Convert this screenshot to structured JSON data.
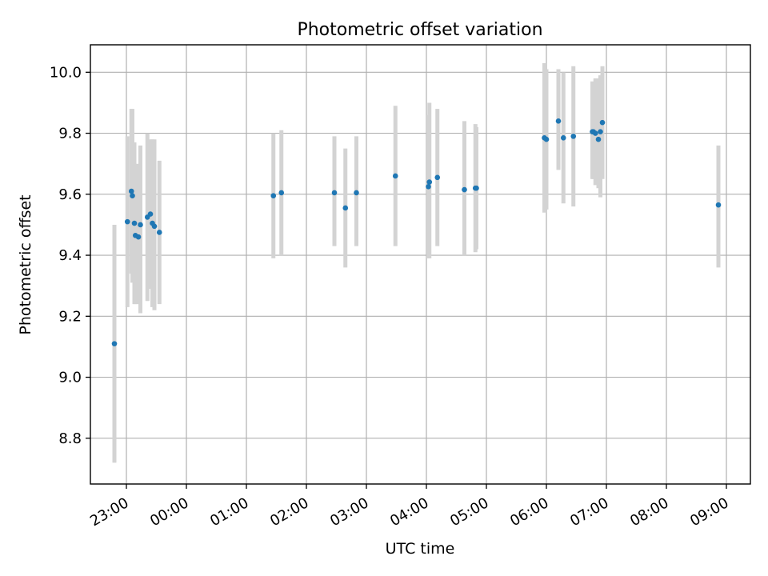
{
  "chart_data": {
    "type": "scatter",
    "title": "Photometric offset variation",
    "xlabel": "UTC time",
    "ylabel": "Photometric offset",
    "grid": true,
    "xlim": [
      "22:24",
      "09:24"
    ],
    "ylim": [
      8.65,
      10.09
    ],
    "x_ticks": [
      "23:00",
      "00:00",
      "01:00",
      "02:00",
      "03:00",
      "04:00",
      "05:00",
      "06:00",
      "07:00",
      "08:00",
      "09:00"
    ],
    "y_ticks": [
      "8.8",
      "9.0",
      "9.2",
      "9.4",
      "9.6",
      "9.8",
      "10.0"
    ],
    "colors": {
      "point": "#1f77b4",
      "errorbar": "#d3d3d3",
      "grid": "#b0b0b0"
    },
    "points": [
      {
        "x": "22:48",
        "y": 9.11,
        "lo": 8.72,
        "hi": 9.5
      },
      {
        "x": "23:01",
        "y": 9.51,
        "lo": 9.23,
        "hi": 9.79
      },
      {
        "x": "23:05",
        "y": 9.61,
        "lo": 9.34,
        "hi": 9.88
      },
      {
        "x": "23:06",
        "y": 9.595,
        "lo": 9.31,
        "hi": 9.88
      },
      {
        "x": "23:08",
        "y": 9.505,
        "lo": 9.24,
        "hi": 9.77
      },
      {
        "x": "23:09",
        "y": 9.465,
        "lo": 9.24,
        "hi": 9.69
      },
      {
        "x": "23:12",
        "y": 9.46,
        "lo": 9.24,
        "hi": 9.7
      },
      {
        "x": "23:14",
        "y": 9.5,
        "lo": 9.21,
        "hi": 9.76
      },
      {
        "x": "23:21",
        "y": 9.525,
        "lo": 9.25,
        "hi": 9.8
      },
      {
        "x": "23:24",
        "y": 9.535,
        "lo": 9.29,
        "hi": 9.78
      },
      {
        "x": "23:26",
        "y": 9.505,
        "lo": 9.23,
        "hi": 9.78
      },
      {
        "x": "23:28",
        "y": 9.495,
        "lo": 9.22,
        "hi": 9.78
      },
      {
        "x": "23:33",
        "y": 9.475,
        "lo": 9.24,
        "hi": 9.71
      },
      {
        "x": "01:27",
        "y": 9.595,
        "lo": 9.39,
        "hi": 9.8
      },
      {
        "x": "01:35",
        "y": 9.605,
        "lo": 9.4,
        "hi": 9.81
      },
      {
        "x": "02:28",
        "y": 9.605,
        "lo": 9.43,
        "hi": 9.79
      },
      {
        "x": "02:39",
        "y": 9.555,
        "lo": 9.36,
        "hi": 9.75
      },
      {
        "x": "02:50",
        "y": 9.605,
        "lo": 9.43,
        "hi": 9.79
      },
      {
        "x": "03:29",
        "y": 9.66,
        "lo": 9.43,
        "hi": 9.89
      },
      {
        "x": "04:02",
        "y": 9.625,
        "lo": 9.39,
        "hi": 9.86
      },
      {
        "x": "04:03",
        "y": 9.64,
        "lo": 9.39,
        "hi": 9.9
      },
      {
        "x": "04:11",
        "y": 9.655,
        "lo": 9.43,
        "hi": 9.88
      },
      {
        "x": "04:38",
        "y": 9.615,
        "lo": 9.4,
        "hi": 9.84
      },
      {
        "x": "04:49",
        "y": 9.62,
        "lo": 9.41,
        "hi": 9.83
      },
      {
        "x": "04:50",
        "y": 9.62,
        "lo": 9.42,
        "hi": 9.82
      },
      {
        "x": "05:58",
        "y": 9.785,
        "lo": 9.54,
        "hi": 10.03
      },
      {
        "x": "06:00",
        "y": 9.78,
        "lo": 9.55,
        "hi": 10.01
      },
      {
        "x": "06:12",
        "y": 9.84,
        "lo": 9.68,
        "hi": 10.01
      },
      {
        "x": "06:17",
        "y": 9.785,
        "lo": 9.57,
        "hi": 10.0
      },
      {
        "x": "06:27",
        "y": 9.79,
        "lo": 9.56,
        "hi": 10.02
      },
      {
        "x": "06:46",
        "y": 9.805,
        "lo": 9.65,
        "hi": 9.97
      },
      {
        "x": "06:47",
        "y": 9.805,
        "lo": 9.65,
        "hi": 9.96
      },
      {
        "x": "06:49",
        "y": 9.8,
        "lo": 9.63,
        "hi": 9.98
      },
      {
        "x": "06:52",
        "y": 9.78,
        "lo": 9.62,
        "hi": 9.98
      },
      {
        "x": "06:54",
        "y": 9.805,
        "lo": 9.59,
        "hi": 9.99
      },
      {
        "x": "06:56",
        "y": 9.835,
        "lo": 9.65,
        "hi": 10.02
      },
      {
        "x": "08:52",
        "y": 9.565,
        "lo": 9.36,
        "hi": 9.76
      }
    ]
  }
}
